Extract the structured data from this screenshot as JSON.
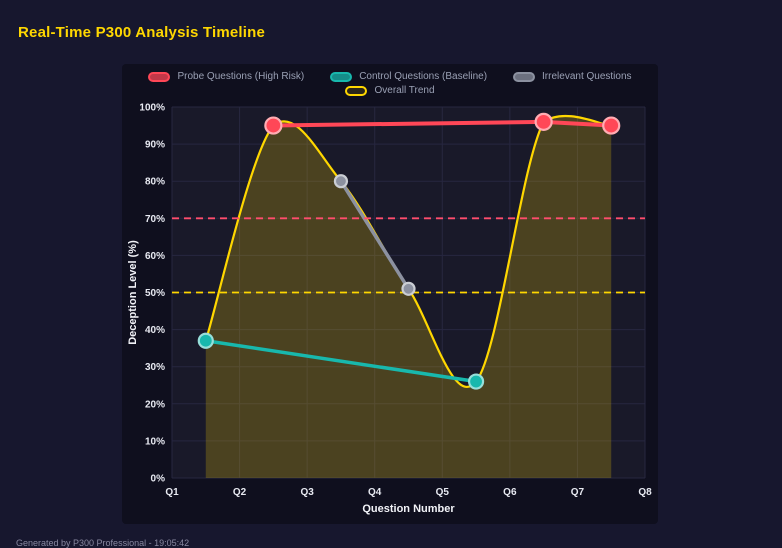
{
  "page": {
    "title": "Real-Time P300 Analysis Timeline",
    "footer_note": "Generated by P300 Professional - 19:05:42"
  },
  "colors": {
    "background": "#17172e",
    "panel": "#0f0f1e",
    "accent_yellow": "#ffd700",
    "threshold_pink": "#ff4d6d",
    "grid": "#272740"
  },
  "chart_data": {
    "type": "line",
    "title": "Real-Time P300 Analysis Timeline",
    "xlabel": "Question Number",
    "ylabel": "Deception Level (%)",
    "x_ticks": [
      "Q1",
      "Q2",
      "Q3",
      "Q4",
      "Q5",
      "Q6",
      "Q7",
      "Q8"
    ],
    "x_tick_positions": [
      1,
      2,
      3,
      4,
      5,
      6,
      7,
      8
    ],
    "x_range": [
      1,
      8
    ],
    "ylim": [
      0,
      100
    ],
    "y_tick_step": 10,
    "y_tick_format": "percent",
    "grid": true,
    "legend_position": "top",
    "thresholds": [
      {
        "value": 70,
        "color": "#ff4d6d",
        "style": "dashed"
      },
      {
        "value": 50,
        "color": "#ffd700",
        "style": "dashed"
      }
    ],
    "series": [
      {
        "name": "Probe Questions (High Risk)",
        "color": "#ff4757",
        "swatch": "filled",
        "points": [
          [
            2.5,
            95
          ],
          [
            6.5,
            96
          ],
          [
            7.5,
            95
          ]
        ]
      },
      {
        "name": "Control Questions (Baseline)",
        "color": "#18b8ad",
        "swatch": "filled",
        "points": [
          [
            1.5,
            37
          ],
          [
            5.5,
            26
          ]
        ]
      },
      {
        "name": "Irrelevant Questions",
        "color": "#8c91a0",
        "swatch": "filled",
        "points": [
          [
            3.5,
            80
          ],
          [
            4.5,
            51
          ]
        ]
      },
      {
        "name": "Overall Trend",
        "color": "#ffd700",
        "swatch": "outline",
        "smooth": true,
        "area": true,
        "area_opacity": 0.22,
        "points": [
          [
            1.5,
            37
          ],
          [
            2.5,
            95
          ],
          [
            3.5,
            80
          ],
          [
            4.5,
            51
          ],
          [
            5.5,
            26
          ],
          [
            6.5,
            96
          ],
          [
            7.5,
            95
          ]
        ]
      }
    ]
  }
}
